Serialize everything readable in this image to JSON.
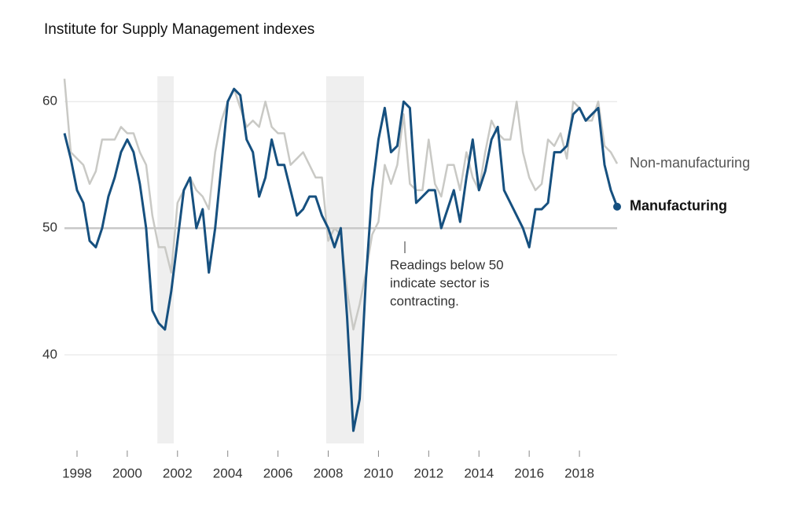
{
  "chart_data": {
    "type": "line",
    "title": "Institute for Supply Management indexes",
    "annotation": [
      "Readings below 50",
      "indicate sector is",
      "contracting."
    ],
    "x": [
      1997.5,
      1997.75,
      1998,
      1998.25,
      1998.5,
      1998.75,
      1999,
      1999.25,
      1999.5,
      1999.75,
      2000,
      2000.25,
      2000.5,
      2000.75,
      2001,
      2001.25,
      2001.5,
      2001.75,
      2002,
      2002.25,
      2002.5,
      2002.75,
      2003,
      2003.25,
      2003.5,
      2003.75,
      2004,
      2004.25,
      2004.5,
      2004.75,
      2005,
      2005.25,
      2005.5,
      2005.75,
      2006,
      2006.25,
      2006.5,
      2006.75,
      2007,
      2007.25,
      2007.5,
      2007.75,
      2008,
      2008.25,
      2008.5,
      2008.75,
      2009,
      2009.25,
      2009.5,
      2009.75,
      2010,
      2010.25,
      2010.5,
      2010.75,
      2011,
      2011.25,
      2011.5,
      2011.75,
      2012,
      2012.25,
      2012.5,
      2012.75,
      2013,
      2013.25,
      2013.5,
      2013.75,
      2014,
      2014.25,
      2014.5,
      2014.75,
      2015,
      2015.25,
      2015.5,
      2015.75,
      2016,
      2016.25,
      2016.5,
      2016.75,
      2017,
      2017.25,
      2017.5,
      2017.75,
      2018,
      2018.25,
      2018.5,
      2018.75,
      2019,
      2019.25,
      2019.5
    ],
    "series": [
      {
        "name": "Non-manufacturing",
        "color": "#c9c9c5",
        "values": [
          61.8,
          56,
          55.5,
          55,
          53.5,
          54.5,
          57,
          57,
          57,
          58,
          57.5,
          57.5,
          56,
          55,
          51,
          48.5,
          48.5,
          46.5,
          52,
          53,
          54,
          53,
          52.5,
          51.5,
          56,
          58.5,
          60,
          61,
          59.5,
          58,
          58.5,
          58,
          60,
          58,
          57.5,
          57.5,
          55,
          55.5,
          56,
          55,
          54,
          54,
          49,
          50,
          49.5,
          45,
          42,
          44,
          46.5,
          49.5,
          50.5,
          55,
          53.5,
          55,
          59,
          53.5,
          53,
          53,
          57,
          53.5,
          52.5,
          55,
          55,
          53,
          56,
          54,
          53,
          56,
          58.5,
          57.5,
          57,
          57,
          60,
          56,
          54,
          53,
          53.5,
          57,
          56.5,
          57.5,
          55.5,
          60,
          59.5,
          58.5,
          58.5,
          60,
          56.5,
          56,
          55.1
        ]
      },
      {
        "name": "Manufacturing",
        "color": "#16507f",
        "values": [
          57.5,
          55.5,
          53,
          52,
          49,
          48.5,
          50,
          52.5,
          54,
          56,
          57,
          56,
          53.5,
          50,
          43.5,
          42.5,
          42,
          45,
          49,
          53,
          54,
          50,
          51.5,
          46.5,
          50,
          55,
          60,
          61,
          60.5,
          57,
          56,
          52.5,
          54,
          57,
          55,
          55,
          53,
          51,
          51.5,
          52.5,
          52.5,
          51,
          50,
          48.5,
          50,
          43,
          34,
          36.5,
          46,
          53,
          57,
          59.5,
          56,
          56.5,
          60,
          59.5,
          52,
          52.5,
          53,
          53,
          50,
          51.5,
          53,
          50.5,
          54,
          57,
          53,
          54.5,
          57,
          58,
          53,
          52,
          51,
          50,
          48.5,
          51.5,
          51.5,
          52,
          56,
          56,
          56.5,
          59,
          59.5,
          58.5,
          59,
          59.5,
          55,
          53,
          51.7
        ]
      }
    ],
    "recessions": [
      [
        2001.2,
        2001.85
      ],
      [
        2007.92,
        2009.42
      ]
    ],
    "reference_y": 50,
    "xlim": [
      1997.5,
      2019.5
    ],
    "ylim": [
      33,
      62
    ],
    "xticks": [
      1998,
      2000,
      2002,
      2004,
      2006,
      2008,
      2010,
      2012,
      2014,
      2016,
      2018
    ],
    "yticks": [
      40,
      50,
      60
    ],
    "grid": true
  }
}
